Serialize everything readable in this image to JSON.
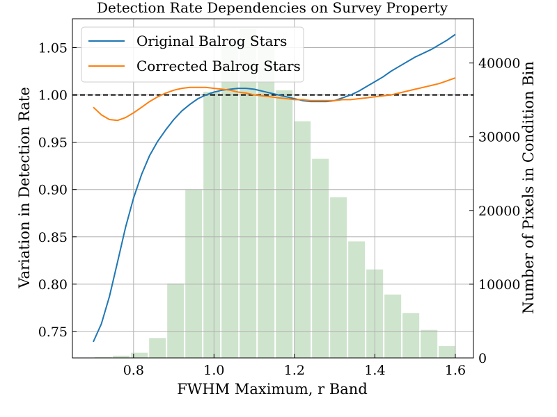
{
  "chart_data": {
    "type": "line",
    "title": "Detection Rate Dependencies on Survey Property",
    "xlabel": "FWHM Maximum, r Band",
    "ylabel": "Variation in Detection Rate",
    "y2label": "Number of Pixels in Condition Bin",
    "xlim": [
      0.648,
      1.645
    ],
    "ylim": [
      0.722,
      1.0805
    ],
    "y2lim": [
      0,
      46000
    ],
    "xticks": [
      "0.8",
      "1.0",
      "1.2",
      "1.4",
      "1.6"
    ],
    "yticks": [
      "0.75",
      "0.80",
      "0.85",
      "0.90",
      "0.95",
      "1.00",
      "1.05"
    ],
    "y2ticks": [
      "0",
      "10000",
      "20000",
      "30000",
      "40000"
    ],
    "grid": true,
    "legend_position": "upper-left",
    "reference_line": 1.0,
    "series": [
      {
        "name": "Original Balrog Stars",
        "color": "#1f77b4",
        "x": [
          0.7,
          0.72,
          0.74,
          0.76,
          0.78,
          0.8,
          0.82,
          0.84,
          0.86,
          0.88,
          0.9,
          0.92,
          0.94,
          0.96,
          0.98,
          1.0,
          1.02,
          1.04,
          1.06,
          1.08,
          1.1,
          1.12,
          1.14,
          1.16,
          1.18,
          1.2,
          1.22,
          1.24,
          1.26,
          1.28,
          1.3,
          1.32,
          1.34,
          1.36,
          1.38,
          1.4,
          1.42,
          1.44,
          1.46,
          1.48,
          1.5,
          1.52,
          1.54,
          1.56,
          1.58,
          1.6
        ],
        "y": [
          0.739,
          0.758,
          0.787,
          0.823,
          0.86,
          0.891,
          0.916,
          0.936,
          0.951,
          0.963,
          0.974,
          0.983,
          0.99,
          0.996,
          1.0,
          1.003,
          1.005,
          1.006,
          1.007,
          1.007,
          1.006,
          1.004,
          1.002,
          1.0,
          0.998,
          0.996,
          0.994,
          0.993,
          0.993,
          0.993,
          0.994,
          0.997,
          1.0,
          1.004,
          1.009,
          1.014,
          1.019,
          1.025,
          1.03,
          1.035,
          1.04,
          1.044,
          1.048,
          1.053,
          1.058,
          1.064
        ]
      },
      {
        "name": "Corrected Balrog Stars",
        "color": "#ff7f0e",
        "x": [
          0.7,
          0.72,
          0.74,
          0.76,
          0.78,
          0.8,
          0.82,
          0.84,
          0.86,
          0.88,
          0.9,
          0.92,
          0.94,
          0.96,
          0.98,
          1.0,
          1.02,
          1.04,
          1.06,
          1.08,
          1.1,
          1.12,
          1.14,
          1.16,
          1.18,
          1.2,
          1.22,
          1.24,
          1.26,
          1.28,
          1.3,
          1.32,
          1.34,
          1.36,
          1.38,
          1.4,
          1.42,
          1.44,
          1.46,
          1.48,
          1.5,
          1.52,
          1.54,
          1.56,
          1.58,
          1.6
        ],
        "y": [
          0.987,
          0.979,
          0.974,
          0.973,
          0.976,
          0.981,
          0.987,
          0.993,
          0.998,
          1.002,
          1.005,
          1.007,
          1.008,
          1.008,
          1.008,
          1.007,
          1.006,
          1.005,
          1.003,
          1.002,
          1.0,
          0.999,
          0.998,
          0.997,
          0.996,
          0.995,
          0.995,
          0.994,
          0.994,
          0.994,
          0.994,
          0.995,
          0.995,
          0.996,
          0.997,
          0.998,
          0.999,
          1.0,
          1.002,
          1.004,
          1.006,
          1.008,
          1.01,
          1.012,
          1.015,
          1.018
        ]
      }
    ],
    "histogram": {
      "color": "#cfe4cd",
      "bin_width": 0.045,
      "x": [
        0.7245,
        0.7695,
        0.8145,
        0.8595,
        0.9045,
        0.9495,
        0.9945,
        1.0395,
        1.0845,
        1.1295,
        1.1745,
        1.2195,
        1.2645,
        1.3095,
        1.3545,
        1.3995,
        1.4445,
        1.4895,
        1.5345,
        1.5795
      ],
      "y": [
        100,
        300,
        700,
        2700,
        10100,
        22800,
        36100,
        43200,
        44600,
        42200,
        36300,
        32100,
        27000,
        21800,
        15800,
        12000,
        8600,
        6100,
        3800,
        1600
      ]
    }
  }
}
